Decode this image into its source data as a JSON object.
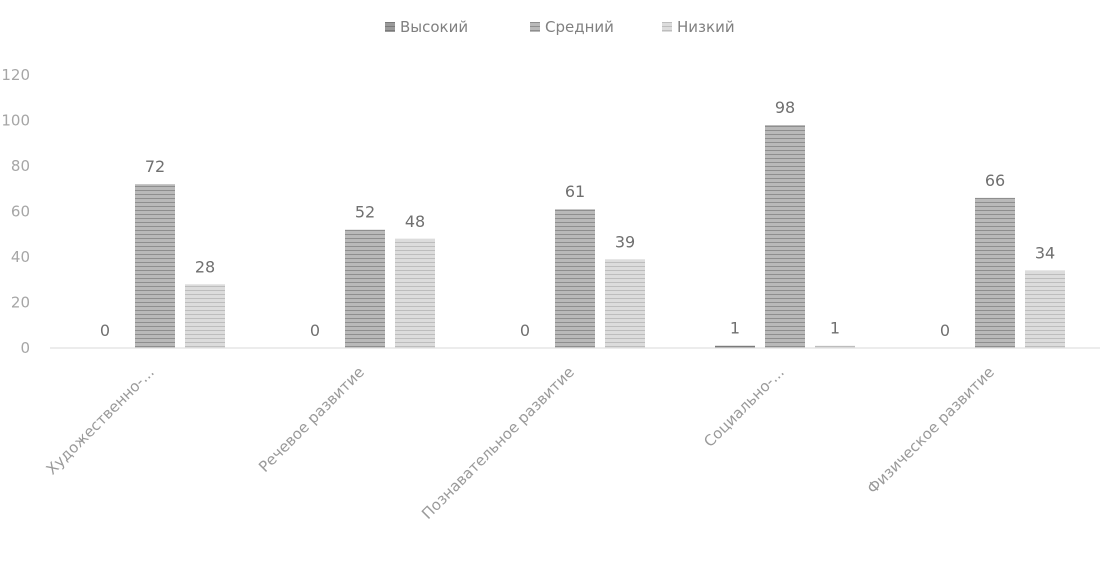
{
  "chart_data": {
    "type": "bar",
    "categories": [
      "Художественно-...",
      "Речевое развитие",
      "Познавательное развитие",
      "Социально-...",
      "Физическое развитие"
    ],
    "series": [
      {
        "name": "Высокий",
        "values": [
          0,
          0,
          0,
          1,
          0
        ],
        "color": "#8c8c8c"
      },
      {
        "name": "Средний",
        "values": [
          72,
          52,
          61,
          98,
          66
        ],
        "color": "#a3a3a3"
      },
      {
        "name": "Низкий",
        "values": [
          28,
          48,
          39,
          1,
          34
        ],
        "color": "#c6c6c6"
      }
    ],
    "yticks": [
      "0",
      "20",
      "40",
      "60",
      "80",
      "100",
      "120"
    ],
    "ylim": [
      0,
      120
    ],
    "legend_position": "top",
    "data_labels": true,
    "grid": false
  }
}
